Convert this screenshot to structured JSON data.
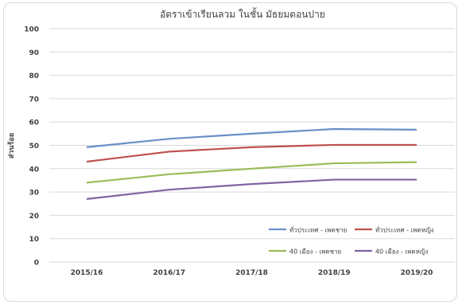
{
  "chart_data": {
    "type": "line",
    "title": "อัตราเข้าเรียนลวม ในชั้น มัธยมตอนปาย",
    "xlabel": "",
    "ylabel": "ส่วนร้อย",
    "categories": [
      "2015/16",
      "2016/17",
      "2017/18",
      "2018/19",
      "2019/20"
    ],
    "ylim": [
      0,
      100
    ],
    "yticks": [
      0,
      10,
      20,
      30,
      40,
      50,
      60,
      70,
      80,
      90,
      100
    ],
    "grid": true,
    "legend_position": "bottom-right",
    "series": [
      {
        "name": "ทั่วประเทศ - เพดชาย",
        "color": "#6b8fc9",
        "values": [
          49.2,
          52.8,
          55.0,
          57.0,
          56.7
        ]
      },
      {
        "name": "ทั่วประเทศ - เพดหญิง",
        "color": "#c0504d",
        "values": [
          43.0,
          47.3,
          49.2,
          50.2,
          50.2
        ]
      },
      {
        "name": "40 เมือง - เพดชาย",
        "color": "#9bbb59",
        "values": [
          34.0,
          37.6,
          40.0,
          42.3,
          42.8
        ]
      },
      {
        "name": "40 เมือง - เพดหญิง",
        "color": "#8064a2",
        "values": [
          27.0,
          31.0,
          33.4,
          35.3,
          35.3
        ]
      }
    ]
  }
}
